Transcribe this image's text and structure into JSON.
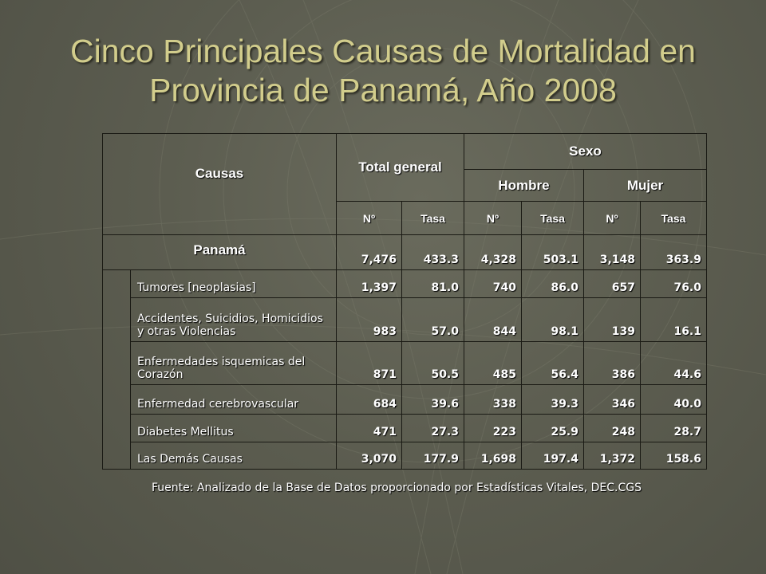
{
  "title": {
    "line1": "Cinco Principales Causas de Mortalidad en",
    "line2": "Provincia de Panamá, Año 2008"
  },
  "table": {
    "header": {
      "causas": "Causas",
      "total_general": "Total general",
      "sexo": "Sexo",
      "hombre": "Hombre",
      "mujer": "Mujer",
      "sub": [
        "Nº",
        "Tasa",
        "Nº",
        "Tasa",
        "Nº",
        "Tasa"
      ]
    },
    "total_row": {
      "label": "Panamá",
      "values": [
        "7,476",
        "433.3",
        "4,328",
        "503.1",
        "3,148",
        "363.9"
      ]
    },
    "rows": [
      {
        "cause": "Tumores [neoplasias]",
        "values": [
          "1,397",
          "81.0",
          "740",
          "86.0",
          "657",
          "76.0"
        ]
      },
      {
        "cause": "Accidentes, Suicidios, Homicidios y otras Violencias",
        "values": [
          "983",
          "57.0",
          "844",
          "98.1",
          "139",
          "16.1"
        ]
      },
      {
        "cause": "Enfermedades isquemicas del Corazón",
        "values": [
          "871",
          "50.5",
          "485",
          "56.4",
          "386",
          "44.6"
        ]
      },
      {
        "cause": "Enfermedad cerebrovascular",
        "values": [
          "684",
          "39.6",
          "338",
          "39.3",
          "346",
          "40.0"
        ]
      },
      {
        "cause": "Diabetes Mellitus",
        "values": [
          "471",
          "27.3",
          "223",
          "25.9",
          "248",
          "28.7"
        ]
      },
      {
        "cause": "Las Demás Causas",
        "values": [
          "3,070",
          "177.9",
          "1,698",
          "197.4",
          "1,372",
          "158.6"
        ]
      }
    ]
  },
  "source": "Fuente: Analizado de la Base de Datos proporcionado por Estadísticas Vitales,   DEC.CGS"
}
